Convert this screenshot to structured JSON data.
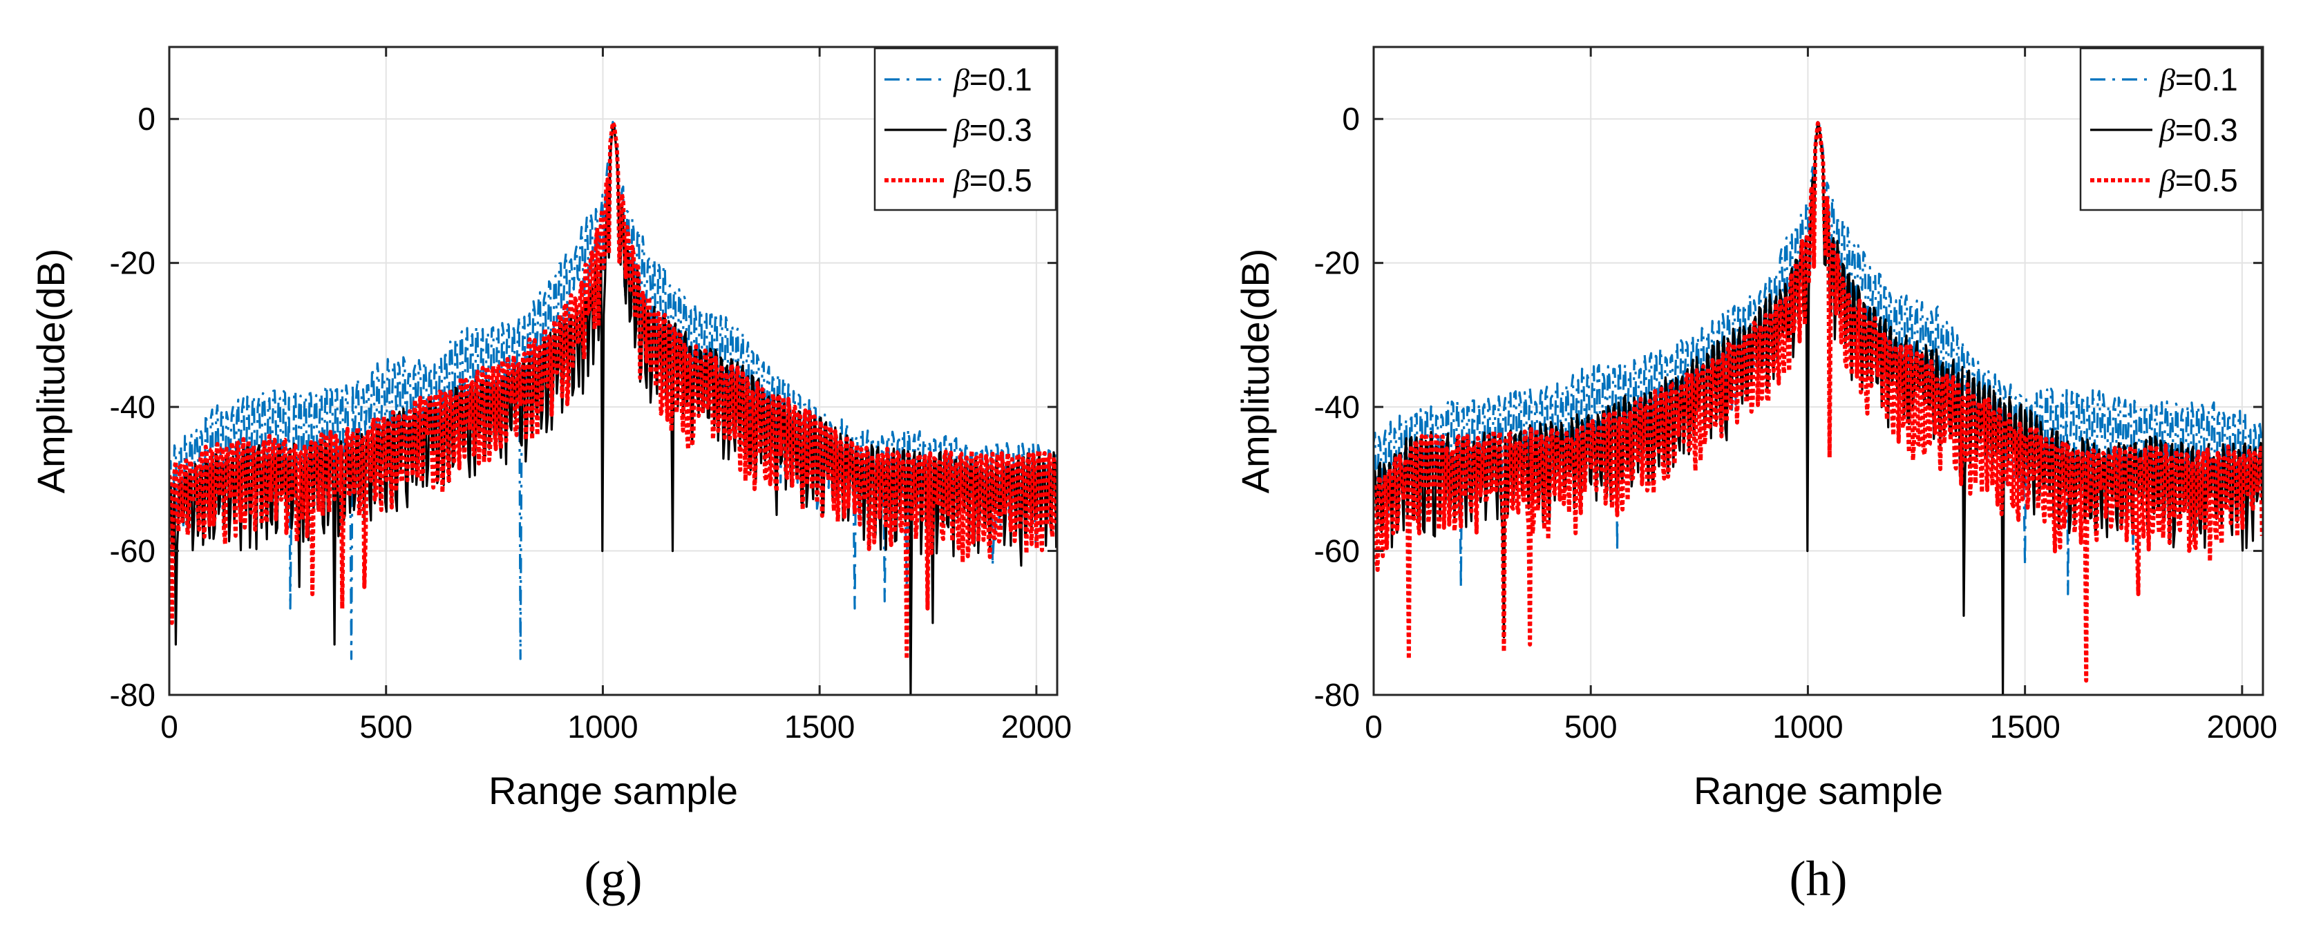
{
  "figure": {
    "panels": [
      "(g)",
      "(h)"
    ]
  },
  "chart_data": [
    {
      "id": "g",
      "type": "line",
      "panel_label": "(g)",
      "xlabel": "Range sample",
      "ylabel": "Amplitude(dB)",
      "xlim": [
        0,
        2048
      ],
      "ylim": [
        -80,
        10
      ],
      "xticks": [
        0,
        500,
        1000,
        1500,
        2000
      ],
      "yticks": [
        0,
        -20,
        -40,
        -60,
        -80
      ],
      "grid": true,
      "legend_position": "top-right",
      "series": [
        {
          "name": "β=0.1",
          "symbol": "β",
          "label_value": "=0.1",
          "color": "#0072BD",
          "style": "dash-dot",
          "envelope_x": [
            0,
            100,
            200,
            300,
            400,
            500,
            600,
            700,
            800,
            900,
            950,
            1000,
            1024,
            1050,
            1100,
            1200,
            1300,
            1400,
            1500,
            1600,
            1700,
            1800,
            1900,
            2000,
            2048
          ],
          "envelope_y": [
            -46,
            -40,
            -38,
            -37,
            -37,
            -33,
            -33,
            -28,
            -28,
            -20,
            -15,
            -10,
            0,
            -10,
            -17,
            -25,
            -28,
            -35,
            -40,
            -43,
            -43,
            -44,
            -44,
            -45,
            -45
          ],
          "dips": [
            [
              280,
              -68
            ],
            [
              420,
              -75
            ],
            [
              810,
              -75
            ],
            [
              1580,
              -68
            ],
            [
              1650,
              -67
            ],
            [
              1700,
              -65
            ],
            [
              1760,
              -67
            ],
            [
              1900,
              -62
            ]
          ]
        },
        {
          "name": "β=0.3",
          "symbol": "β",
          "label_value": "=0.3",
          "color": "#000000",
          "style": "solid",
          "envelope_x": [
            0,
            100,
            200,
            300,
            400,
            500,
            600,
            700,
            800,
            900,
            950,
            1000,
            1024,
            1050,
            1100,
            1200,
            1300,
            1400,
            1500,
            1600,
            1700,
            1800,
            1900,
            2000,
            2048
          ],
          "envelope_y": [
            -49,
            -46,
            -45,
            -45,
            -44,
            -41,
            -39,
            -36,
            -34,
            -28,
            -25,
            -18,
            0,
            -15,
            -25,
            -30,
            -33,
            -38,
            -41,
            -45,
            -46,
            -46,
            -47,
            -46,
            -46
          ],
          "dips": [
            [
              15,
              -73
            ],
            [
              300,
              -65
            ],
            [
              380,
              -73
            ],
            [
              1000,
              -60
            ],
            [
              1160,
              -60
            ],
            [
              1400,
              -55
            ],
            [
              1710,
              -80
            ],
            [
              1760,
              -70
            ]
          ]
        },
        {
          "name": "β=0.5",
          "symbol": "β",
          "label_value": "=0.5",
          "color": "#FF0000",
          "style": "dotted",
          "envelope_x": [
            0,
            100,
            200,
            300,
            400,
            500,
            600,
            700,
            800,
            900,
            950,
            1000,
            1024,
            1050,
            1100,
            1200,
            1300,
            1400,
            1500,
            1600,
            1700,
            1800,
            1900,
            2000,
            2048
          ],
          "envelope_y": [
            -48,
            -45,
            -44,
            -44,
            -43,
            -41,
            -38,
            -35,
            -32,
            -27,
            -22,
            -12,
            0,
            -12,
            -24,
            -31,
            -34,
            -38,
            -41,
            -45,
            -46,
            -46,
            -46,
            -46,
            -46
          ],
          "dips": [
            [
              5,
              -70
            ],
            [
              330,
              -66
            ],
            [
              400,
              -68
            ],
            [
              450,
              -65
            ],
            [
              1700,
              -75
            ],
            [
              1750,
              -68
            ]
          ]
        }
      ]
    },
    {
      "id": "h",
      "type": "line",
      "panel_label": "(h)",
      "xlabel": "Range sample",
      "ylabel": "Amplitude(dB)",
      "xlim": [
        0,
        2048
      ],
      "ylim": [
        -80,
        10
      ],
      "xticks": [
        0,
        500,
        1000,
        1500,
        2000
      ],
      "yticks": [
        0,
        -20,
        -40,
        -60,
        -80
      ],
      "grid": true,
      "legend_position": "top-right",
      "series": [
        {
          "name": "β=0.1",
          "symbol": "β",
          "label_value": "=0.1",
          "color": "#0072BD",
          "style": "dash-dot",
          "envelope_x": [
            0,
            100,
            200,
            300,
            400,
            500,
            600,
            700,
            800,
            900,
            950,
            1000,
            1024,
            1050,
            1100,
            1200,
            1300,
            1400,
            1500,
            1600,
            1700,
            1800,
            1900,
            2000,
            2048
          ],
          "envelope_y": [
            -43,
            -40,
            -39,
            -38,
            -37,
            -34,
            -33,
            -31,
            -27,
            -23,
            -16,
            -10,
            0,
            -10,
            -16,
            -24,
            -26,
            -34,
            -38,
            -37,
            -38,
            -39,
            -39,
            -40,
            -42
          ],
          "dips": [
            [
              200,
              -65
            ],
            [
              560,
              -60
            ],
            [
              1500,
              -62
            ],
            [
              1600,
              -66
            ],
            [
              1750,
              -60
            ]
          ]
        },
        {
          "name": "β=0.3",
          "symbol": "β",
          "label_value": "=0.3",
          "color": "#000000",
          "style": "solid",
          "envelope_x": [
            0,
            100,
            200,
            300,
            400,
            500,
            600,
            700,
            800,
            900,
            950,
            1000,
            1024,
            1050,
            1100,
            1200,
            1300,
            1400,
            1500,
            1600,
            1700,
            1800,
            1900,
            2000,
            2048
          ],
          "envelope_y": [
            -48,
            -43,
            -44,
            -43,
            -42,
            -40,
            -38,
            -35,
            -30,
            -25,
            -22,
            -14,
            0,
            -14,
            -22,
            -29,
            -32,
            -36,
            -40,
            -44,
            -45,
            -44,
            -45,
            -45,
            -45
          ],
          "dips": [
            [
              300,
              -72
            ],
            [
              1000,
              -60
            ],
            [
              1360,
              -69
            ],
            [
              1450,
              -80
            ]
          ]
        },
        {
          "name": "β=0.5",
          "symbol": "β",
          "label_value": "=0.5",
          "color": "#FF0000",
          "style": "dotted",
          "envelope_x": [
            0,
            100,
            200,
            300,
            400,
            500,
            600,
            700,
            800,
            900,
            950,
            1000,
            1024,
            1050,
            1100,
            1200,
            1300,
            1400,
            1500,
            1600,
            1700,
            1800,
            1900,
            2000,
            2048
          ],
          "envelope_y": [
            -50,
            -44,
            -44,
            -43,
            -43,
            -42,
            -39,
            -36,
            -32,
            -27,
            -24,
            -14,
            0,
            -14,
            -24,
            -30,
            -34,
            -38,
            -42,
            -45,
            -45,
            -45,
            -46,
            -45,
            -45
          ],
          "dips": [
            [
              80,
              -75
            ],
            [
              300,
              -74
            ],
            [
              360,
              -73
            ],
            [
              1050,
              -47
            ],
            [
              1640,
              -78
            ],
            [
              1760,
              -66
            ]
          ]
        }
      ]
    }
  ]
}
